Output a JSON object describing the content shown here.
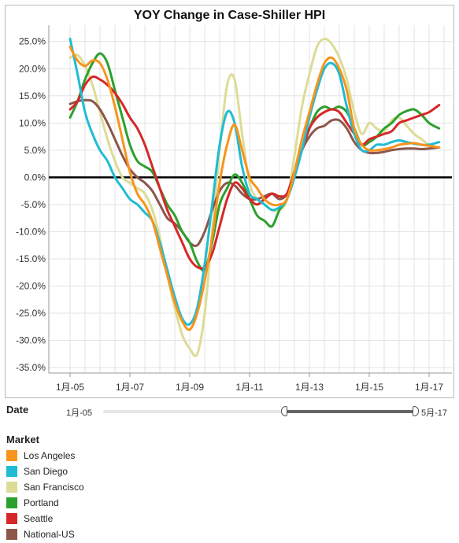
{
  "chart_data": {
    "type": "line",
    "title": "YOY Change in Case-Shiller HPI",
    "xlabel": "",
    "ylabel": "",
    "x_range": [
      "2005-01",
      "2017-05"
    ],
    "ylim": [
      -0.36,
      0.28
    ],
    "y_ticks": [
      "25.0%",
      "20.0%",
      "15.0%",
      "10.0%",
      "5.0%",
      "0.0%",
      "-5.0%",
      "-10.0%",
      "-15.0%",
      "-20.0%",
      "-25.0%",
      "-30.0%",
      "-35.0%"
    ],
    "x_ticks": [
      "1月-05",
      "1月-07",
      "1月-09",
      "1月-11",
      "1月-13",
      "1月-15",
      "1月-17"
    ],
    "grid": true,
    "series": [
      {
        "name": "Los Angeles",
        "color": "#f7941d",
        "x": [
          "2005-01",
          "2005-04",
          "2005-07",
          "2005-10",
          "2006-01",
          "2006-04",
          "2006-07",
          "2006-10",
          "2007-01",
          "2007-04",
          "2007-07",
          "2007-10",
          "2008-01",
          "2008-04",
          "2008-07",
          "2008-10",
          "2009-01",
          "2009-04",
          "2009-07",
          "2009-10",
          "2010-01",
          "2010-04",
          "2010-07",
          "2010-10",
          "2011-01",
          "2011-04",
          "2011-07",
          "2011-10",
          "2012-01",
          "2012-04",
          "2012-07",
          "2012-10",
          "2013-01",
          "2013-04",
          "2013-07",
          "2013-10",
          "2014-01",
          "2014-04",
          "2014-07",
          "2014-10",
          "2015-01",
          "2015-04",
          "2015-07",
          "2015-10",
          "2016-01",
          "2016-04",
          "2016-07",
          "2016-10",
          "2017-01",
          "2017-05"
        ],
        "y": [
          0.24,
          0.215,
          0.205,
          0.215,
          0.21,
          0.18,
          0.13,
          0.07,
          0.01,
          -0.03,
          -0.05,
          -0.08,
          -0.13,
          -0.18,
          -0.23,
          -0.265,
          -0.28,
          -0.25,
          -0.19,
          -0.11,
          -0.01,
          0.06,
          0.097,
          0.05,
          0.0,
          -0.02,
          -0.04,
          -0.05,
          -0.05,
          -0.04,
          0.01,
          0.07,
          0.12,
          0.17,
          0.21,
          0.22,
          0.2,
          0.16,
          0.09,
          0.06,
          0.05,
          0.05,
          0.052,
          0.055,
          0.06,
          0.062,
          0.063,
          0.06,
          0.058,
          0.055
        ]
      },
      {
        "name": "San Diego",
        "color": "#1fbcd2",
        "x": [
          "2005-01",
          "2005-04",
          "2005-07",
          "2005-10",
          "2006-01",
          "2006-04",
          "2006-07",
          "2006-10",
          "2007-01",
          "2007-04",
          "2007-07",
          "2007-10",
          "2008-01",
          "2008-04",
          "2008-07",
          "2008-10",
          "2009-01",
          "2009-04",
          "2009-07",
          "2009-10",
          "2010-01",
          "2010-04",
          "2010-07",
          "2010-10",
          "2011-01",
          "2011-04",
          "2011-07",
          "2011-10",
          "2012-01",
          "2012-04",
          "2012-07",
          "2012-10",
          "2013-01",
          "2013-04",
          "2013-07",
          "2013-10",
          "2014-01",
          "2014-04",
          "2014-07",
          "2014-10",
          "2015-01",
          "2015-04",
          "2015-07",
          "2015-10",
          "2016-01",
          "2016-04",
          "2016-07",
          "2016-10",
          "2017-01",
          "2017-05"
        ],
        "y": [
          0.255,
          0.19,
          0.12,
          0.08,
          0.05,
          0.03,
          0.0,
          -0.02,
          -0.04,
          -0.05,
          -0.065,
          -0.08,
          -0.12,
          -0.17,
          -0.22,
          -0.26,
          -0.27,
          -0.24,
          -0.16,
          -0.05,
          0.06,
          0.12,
          0.1,
          0.02,
          -0.03,
          -0.04,
          -0.05,
          -0.06,
          -0.055,
          -0.04,
          0.0,
          0.05,
          0.11,
          0.16,
          0.2,
          0.21,
          0.19,
          0.13,
          0.08,
          0.05,
          0.05,
          0.06,
          0.06,
          0.065,
          0.068,
          0.065,
          0.062,
          0.06,
          0.06,
          0.065
        ]
      },
      {
        "name": "San Francisco",
        "color": "#dcdc96",
        "x": [
          "2005-01",
          "2005-04",
          "2005-07",
          "2005-10",
          "2006-01",
          "2006-04",
          "2006-07",
          "2006-10",
          "2007-01",
          "2007-04",
          "2007-07",
          "2007-10",
          "2008-01",
          "2008-04",
          "2008-07",
          "2008-10",
          "2009-01",
          "2009-04",
          "2009-07",
          "2009-10",
          "2010-01",
          "2010-04",
          "2010-07",
          "2010-10",
          "2011-01",
          "2011-04",
          "2011-07",
          "2011-10",
          "2012-01",
          "2012-04",
          "2012-07",
          "2012-10",
          "2013-01",
          "2013-04",
          "2013-07",
          "2013-10",
          "2014-01",
          "2014-04",
          "2014-07",
          "2014-10",
          "2015-01",
          "2015-04",
          "2015-07",
          "2015-10",
          "2016-01",
          "2016-04",
          "2016-07",
          "2016-10",
          "2017-01",
          "2017-05"
        ],
        "y": [
          0.22,
          0.225,
          0.205,
          0.17,
          0.12,
          0.07,
          0.03,
          0.0,
          -0.01,
          -0.02,
          -0.03,
          -0.06,
          -0.11,
          -0.18,
          -0.24,
          -0.29,
          -0.315,
          -0.325,
          -0.25,
          -0.1,
          0.05,
          0.17,
          0.18,
          0.08,
          -0.01,
          -0.04,
          -0.05,
          -0.06,
          -0.06,
          -0.04,
          0.04,
          0.13,
          0.19,
          0.24,
          0.255,
          0.245,
          0.22,
          0.18,
          0.12,
          0.08,
          0.1,
          0.09,
          0.085,
          0.105,
          0.11,
          0.095,
          0.08,
          0.07,
          0.06,
          0.055
        ]
      },
      {
        "name": "Portland",
        "color": "#2ca02c",
        "x": [
          "2005-01",
          "2005-04",
          "2005-07",
          "2005-10",
          "2006-01",
          "2006-04",
          "2006-07",
          "2006-10",
          "2007-01",
          "2007-04",
          "2007-07",
          "2007-10",
          "2008-01",
          "2008-04",
          "2008-07",
          "2008-10",
          "2009-01",
          "2009-04",
          "2009-07",
          "2009-10",
          "2010-01",
          "2010-04",
          "2010-07",
          "2010-10",
          "2011-01",
          "2011-04",
          "2011-07",
          "2011-10",
          "2012-01",
          "2012-04",
          "2012-07",
          "2012-10",
          "2013-01",
          "2013-04",
          "2013-07",
          "2013-10",
          "2014-01",
          "2014-04",
          "2014-07",
          "2014-10",
          "2015-01",
          "2015-04",
          "2015-07",
          "2015-10",
          "2016-01",
          "2016-04",
          "2016-07",
          "2016-10",
          "2017-01",
          "2017-05"
        ],
        "y": [
          0.11,
          0.14,
          0.18,
          0.21,
          0.228,
          0.21,
          0.16,
          0.11,
          0.06,
          0.03,
          0.02,
          0.01,
          -0.02,
          -0.05,
          -0.07,
          -0.1,
          -0.12,
          -0.155,
          -0.17,
          -0.12,
          -0.05,
          -0.02,
          0.005,
          -0.01,
          -0.04,
          -0.07,
          -0.08,
          -0.09,
          -0.06,
          -0.04,
          0.01,
          0.05,
          0.09,
          0.12,
          0.13,
          0.125,
          0.13,
          0.12,
          0.09,
          0.06,
          0.065,
          0.075,
          0.09,
          0.1,
          0.115,
          0.122,
          0.125,
          0.115,
          0.1,
          0.09
        ]
      },
      {
        "name": "Seattle",
        "color": "#d62728",
        "x": [
          "2005-01",
          "2005-04",
          "2005-07",
          "2005-10",
          "2006-01",
          "2006-04",
          "2006-07",
          "2006-10",
          "2007-01",
          "2007-04",
          "2007-07",
          "2007-10",
          "2008-01",
          "2008-04",
          "2008-07",
          "2008-10",
          "2009-01",
          "2009-04",
          "2009-07",
          "2009-10",
          "2010-01",
          "2010-04",
          "2010-07",
          "2010-10",
          "2011-01",
          "2011-04",
          "2011-07",
          "2011-10",
          "2012-01",
          "2012-04",
          "2012-07",
          "2012-10",
          "2013-01",
          "2013-04",
          "2013-07",
          "2013-10",
          "2014-01",
          "2014-04",
          "2014-07",
          "2014-10",
          "2015-01",
          "2015-04",
          "2015-07",
          "2015-10",
          "2016-01",
          "2016-04",
          "2016-07",
          "2016-10",
          "2017-01",
          "2017-05"
        ],
        "y": [
          0.125,
          0.14,
          0.17,
          0.185,
          0.18,
          0.17,
          0.155,
          0.135,
          0.11,
          0.09,
          0.06,
          0.02,
          -0.02,
          -0.06,
          -0.09,
          -0.12,
          -0.15,
          -0.165,
          -0.165,
          -0.14,
          -0.09,
          -0.04,
          -0.01,
          -0.02,
          -0.04,
          -0.05,
          -0.04,
          -0.03,
          -0.035,
          -0.03,
          0.01,
          0.05,
          0.09,
          0.11,
          0.12,
          0.125,
          0.12,
          0.1,
          0.08,
          0.06,
          0.07,
          0.075,
          0.08,
          0.085,
          0.1,
          0.105,
          0.11,
          0.115,
          0.12,
          0.133
        ]
      },
      {
        "name": "National-US",
        "color": "#8c564b",
        "x": [
          "2005-01",
          "2005-04",
          "2005-07",
          "2005-10",
          "2006-01",
          "2006-04",
          "2006-07",
          "2006-10",
          "2007-01",
          "2007-04",
          "2007-07",
          "2007-10",
          "2008-01",
          "2008-04",
          "2008-07",
          "2008-10",
          "2009-01",
          "2009-04",
          "2009-07",
          "2009-10",
          "2010-01",
          "2010-04",
          "2010-07",
          "2010-10",
          "2011-01",
          "2011-04",
          "2011-07",
          "2011-10",
          "2012-01",
          "2012-04",
          "2012-07",
          "2012-10",
          "2013-01",
          "2013-04",
          "2013-07",
          "2013-10",
          "2014-01",
          "2014-04",
          "2014-07",
          "2014-10",
          "2015-01",
          "2015-04",
          "2015-07",
          "2015-10",
          "2016-01",
          "2016-04",
          "2016-07",
          "2016-10",
          "2017-01",
          "2017-05"
        ],
        "y": [
          0.135,
          0.14,
          0.142,
          0.14,
          0.125,
          0.1,
          0.07,
          0.04,
          0.015,
          0.0,
          -0.01,
          -0.025,
          -0.05,
          -0.075,
          -0.085,
          -0.1,
          -0.12,
          -0.125,
          -0.1,
          -0.06,
          -0.025,
          -0.01,
          -0.015,
          -0.03,
          -0.04,
          -0.04,
          -0.035,
          -0.03,
          -0.04,
          -0.03,
          0.01,
          0.05,
          0.075,
          0.09,
          0.095,
          0.105,
          0.105,
          0.09,
          0.065,
          0.05,
          0.045,
          0.045,
          0.047,
          0.05,
          0.052,
          0.053,
          0.053,
          0.052,
          0.053,
          0.055
        ]
      }
    ]
  },
  "date_filter": {
    "label": "Date",
    "range_start": "1月-05",
    "range_end": "5月-17"
  },
  "legend": {
    "title": "Market",
    "items": [
      {
        "label": "Los Angeles",
        "color": "#f7941d"
      },
      {
        "label": "San Diego",
        "color": "#1fbcd2"
      },
      {
        "label": "San Francisco",
        "color": "#dcdc96"
      },
      {
        "label": "Portland",
        "color": "#2ca02c"
      },
      {
        "label": "Seattle",
        "color": "#d62728"
      },
      {
        "label": "National-US",
        "color": "#8c564b"
      }
    ]
  }
}
